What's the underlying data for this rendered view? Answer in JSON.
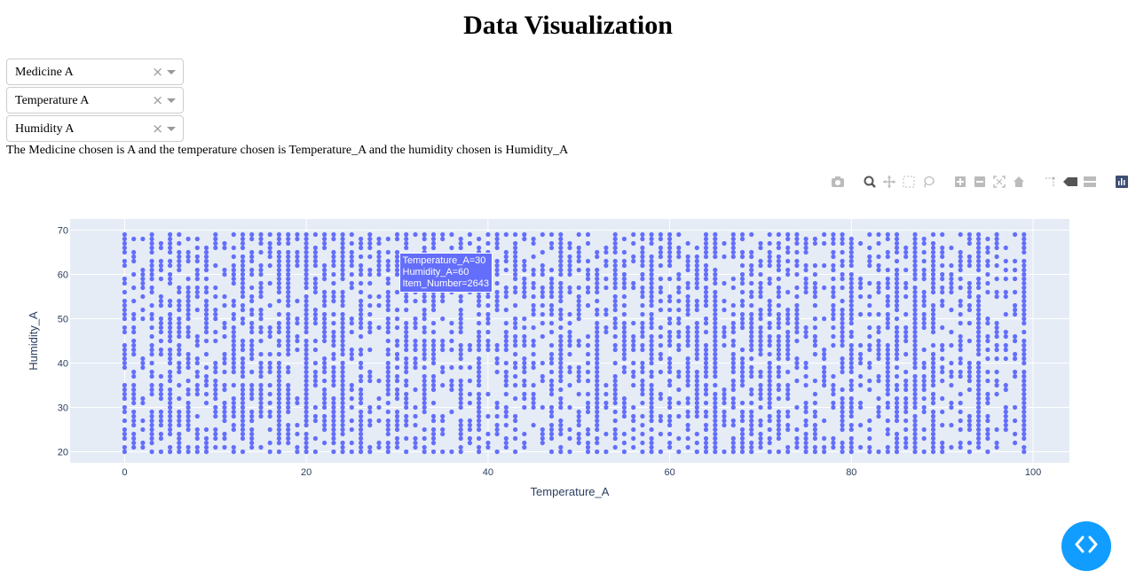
{
  "page_title": "Data Visualization",
  "dropdowns": [
    {
      "value": "Medicine A",
      "clear_glyph": "×"
    },
    {
      "value": "Temperature A",
      "clear_glyph": "×"
    },
    {
      "value": "Humidity A",
      "clear_glyph": "×"
    }
  ],
  "description": "The Medicine chosen is A and the temperature chosen is Temperature_A and the humidity chosen is Humidity_A",
  "modebar_icons": [
    "camera-icon",
    "zoom-icon",
    "pan-icon",
    "box-select-icon",
    "lasso-select-icon",
    "zoom-in-icon",
    "zoom-out-icon",
    "autoscale-icon",
    "reset-axes-icon",
    "spike-lines-icon",
    "hover-closest-icon",
    "hover-compare-icon",
    "plotly-logo-icon"
  ],
  "hover": {
    "lines": [
      "Temperature_A=30",
      "Humidity_A=60",
      "Item_Number=2643"
    ]
  },
  "colors": {
    "marker": "#636efa",
    "plot_bg": "#e5ecf6",
    "fab": "#119dff"
  },
  "chart_data": {
    "type": "scatter",
    "title": "",
    "xlabel": "Temperature_A",
    "ylabel": "Humidity_A",
    "xlim": [
      -6,
      104
    ],
    "ylim": [
      17.5,
      72.5
    ],
    "xticks": [
      0,
      20,
      40,
      60,
      80,
      100
    ],
    "yticks": [
      20,
      30,
      40,
      50,
      60,
      70
    ],
    "grid": true,
    "note": "dense grid of integer points: Temperature_A 0-99, Humidity_A 20-69, with scattered gaps",
    "x_range": [
      0,
      99
    ],
    "y_range": [
      20,
      69
    ],
    "highlighted_point": {
      "x": 30,
      "y": 60,
      "Item_Number": 2643
    }
  }
}
